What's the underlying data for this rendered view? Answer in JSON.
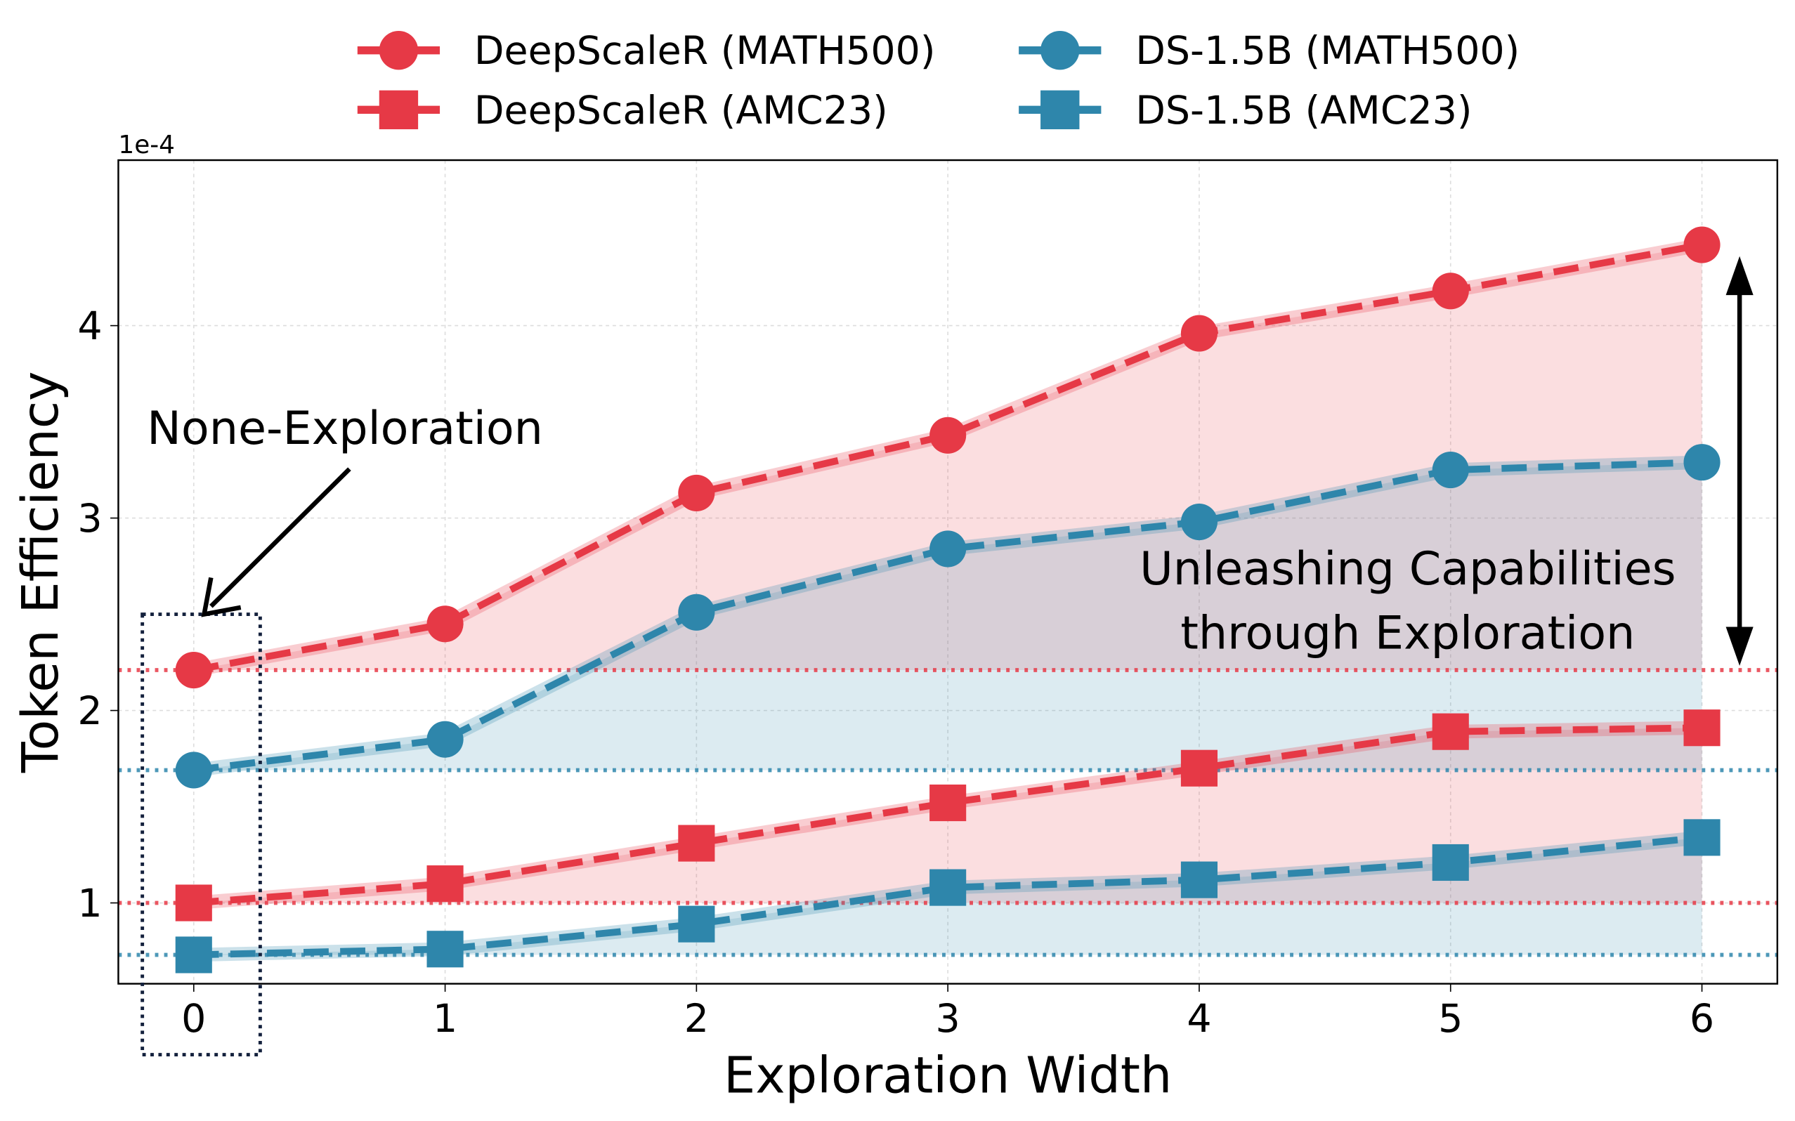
{
  "chart_data": {
    "type": "line",
    "xlabel": "Exploration Width",
    "ylabel": "Token Efficiency",
    "y_offset_label": "1e-4",
    "x": [
      0,
      1,
      2,
      3,
      4,
      5,
      6
    ],
    "xticks": [
      "0",
      "1",
      "2",
      "3",
      "4",
      "5",
      "6"
    ],
    "yticks": [
      "1",
      "2",
      "3",
      "4"
    ],
    "ytick_values": [
      1,
      2,
      3,
      4
    ],
    "xlim": [
      -0.3,
      6.3
    ],
    "ylim": [
      0.58,
      4.86
    ],
    "grid": true,
    "legend_placement": "top (outside)",
    "series": [
      {
        "name": "DeepScaleR (MATH500)",
        "color": "#e63946",
        "marker": "circle",
        "values": [
          2.21,
          2.45,
          3.13,
          3.43,
          3.96,
          4.18,
          4.42
        ]
      },
      {
        "name": "DeepScaleR (AMC23)",
        "color": "#e63946",
        "marker": "square",
        "values": [
          1.0,
          1.1,
          1.31,
          1.52,
          1.7,
          1.89,
          1.91
        ]
      },
      {
        "name": "DS-1.5B (MATH500)",
        "color": "#2e86ab",
        "marker": "circle",
        "values": [
          1.69,
          1.85,
          2.51,
          2.84,
          2.98,
          3.25,
          3.29
        ]
      },
      {
        "name": "DS-1.5B (AMC23)",
        "color": "#2e86ab",
        "marker": "square",
        "values": [
          0.73,
          0.76,
          0.89,
          1.08,
          1.12,
          1.21,
          1.34
        ]
      }
    ],
    "annotations": {
      "none_exploration": "None-Exploration",
      "unleashing_line1": "Unleashing Capabilities",
      "unleashing_line2": "through Exploration"
    }
  }
}
